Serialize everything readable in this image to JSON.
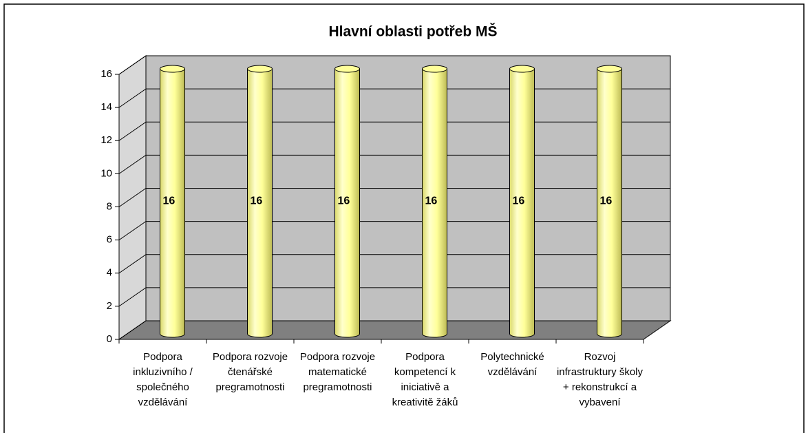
{
  "chart_data": {
    "type": "bar",
    "title": "Hlavní oblasti potřeb MŠ",
    "categories": [
      "Podpora inkluzivního / společného vzdělávání",
      "Podpora rozvoje čtenářské pregramotnosti",
      "Podpora rozvoje matematické pregramotnosti",
      "Podpora kompetencí k iniciativě a kreativitě žáků",
      "Polytechnické vzdělávání",
      "Rozvoj infrastruktury školy + rekonstrukcí a vybavení"
    ],
    "values": [
      16,
      16,
      16,
      16,
      16,
      16
    ],
    "color": "#ffff99",
    "ylim": [
      0,
      16
    ],
    "yticks": [
      0,
      2,
      4,
      6,
      8,
      10,
      12,
      14,
      16
    ],
    "grid": true
  }
}
